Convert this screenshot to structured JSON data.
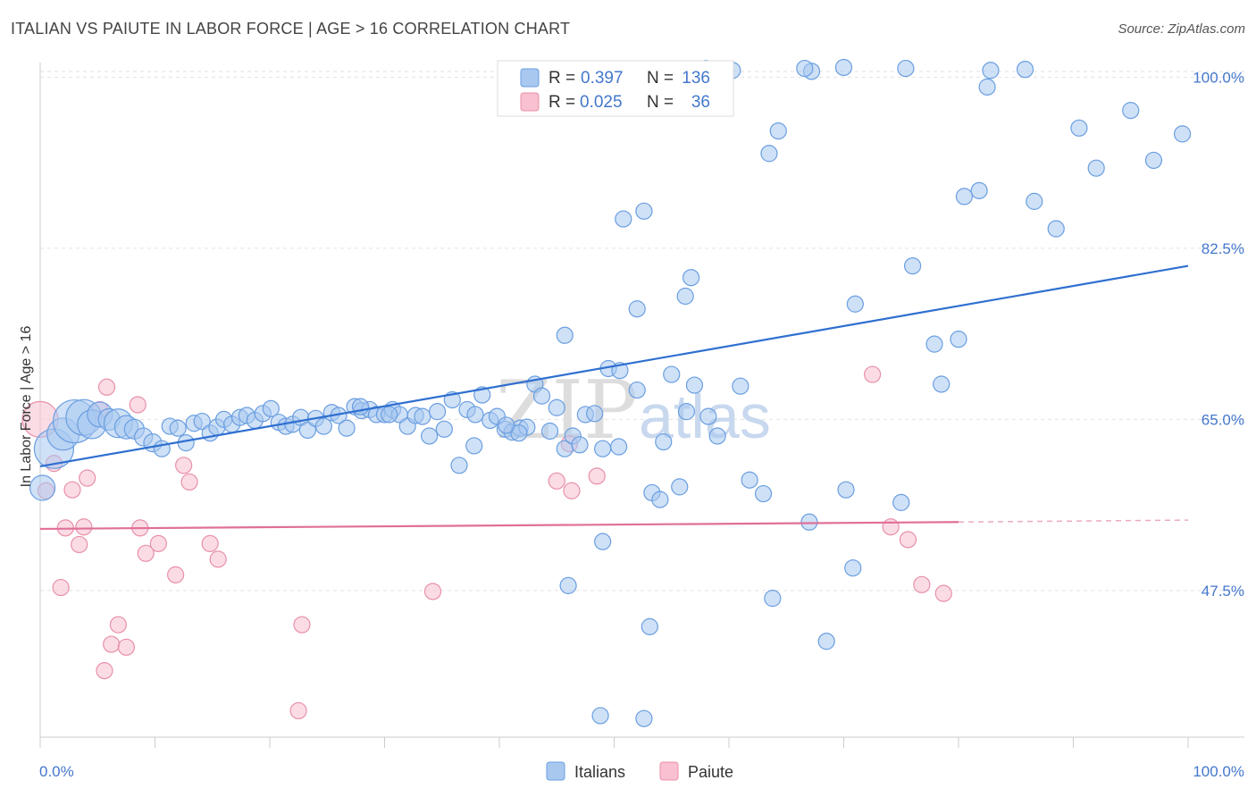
{
  "header": {
    "title": "ITALIAN VS PAIUTE IN LABOR FORCE | AGE > 16 CORRELATION CHART",
    "source": "Source: ZipAtlas.com"
  },
  "colors": {
    "italians_fill": "#a8c8f0",
    "italians_stroke": "#6a9ee0",
    "italians_line": "#2f6fd0",
    "paiute_fill": "#f8c0d0",
    "paiute_stroke": "#e890a8",
    "paiute_line": "#e06f98",
    "tick_text": "#4477cc"
  },
  "legend": {
    "rows": [
      {
        "r_label": "R =",
        "r_value": "0.397",
        "n_label": "N =",
        "n_value": "136"
      },
      {
        "r_label": "R =",
        "r_value": "0.025",
        "n_label": "N =",
        "n_value": "36"
      }
    ]
  },
  "bottom_legend": {
    "items": [
      "Italians",
      "Paiute"
    ]
  },
  "watermark": {
    "zip": "ZIP",
    "atlas": "atlas"
  },
  "chart_data": {
    "type": "scatter",
    "title": "ITALIAN VS PAIUTE IN LABOR FORCE | AGE > 16 CORRELATION CHART",
    "ylabel": "In Labor Force | Age > 16",
    "xlabel": "",
    "xlim": [
      0,
      100
    ],
    "ylim": [
      32.5,
      101.5
    ],
    "x_tick_labels": [
      "0.0%",
      "100.0%"
    ],
    "y_ticks": [
      47.5,
      65.0,
      82.5,
      100.0
    ],
    "y_tick_labels": [
      "47.5%",
      "65.0%",
      "82.5%",
      "100.0%"
    ],
    "grid": "horizontal dashed",
    "legend_position": "top-center",
    "series": [
      {
        "name": "Italians",
        "R": 0.397,
        "N": 136,
        "trend": {
          "x": [
            0,
            100
          ],
          "y": [
            60.2,
            80.7
          ]
        },
        "points": [
          [
            0.2,
            58.0,
            14
          ],
          [
            1.2,
            62.0,
            22
          ],
          [
            2.0,
            63.5,
            18
          ],
          [
            3.0,
            64.8,
            24
          ],
          [
            3.8,
            65.2,
            20
          ],
          [
            4.5,
            64.5,
            16
          ],
          [
            5.2,
            65.5,
            14
          ],
          [
            6.0,
            65.0,
            12
          ],
          [
            6.8,
            64.6,
            16
          ],
          [
            7.5,
            64.2,
            13
          ],
          [
            8.2,
            64.0,
            11
          ],
          [
            9.0,
            63.2,
            10
          ],
          [
            9.8,
            62.6,
            10
          ],
          [
            10.6,
            62.0,
            9
          ],
          [
            11.3,
            64.3,
            9
          ],
          [
            12.0,
            64.1,
            9
          ],
          [
            12.7,
            62.6,
            9
          ],
          [
            13.4,
            64.6,
            9
          ],
          [
            14.1,
            64.8,
            9
          ],
          [
            14.8,
            63.6,
            9
          ],
          [
            15.4,
            64.2,
            9
          ],
          [
            16.0,
            65.0,
            9
          ],
          [
            16.7,
            64.5,
            9
          ],
          [
            17.4,
            65.2,
            9
          ],
          [
            18.0,
            65.4,
            9
          ],
          [
            18.7,
            64.9,
            9
          ],
          [
            19.4,
            65.6,
            9
          ],
          [
            20.1,
            66.1,
            9
          ],
          [
            20.8,
            64.7,
            9
          ],
          [
            21.4,
            64.3,
            9
          ],
          [
            22.0,
            64.5,
            9
          ],
          [
            22.7,
            65.2,
            9
          ],
          [
            23.3,
            63.9,
            9
          ],
          [
            24.0,
            65.1,
            9
          ],
          [
            24.7,
            64.3,
            9
          ],
          [
            25.4,
            65.7,
            9
          ],
          [
            26.0,
            65.4,
            9
          ],
          [
            26.7,
            64.1,
            9
          ],
          [
            27.4,
            66.3,
            9
          ],
          [
            28.0,
            65.9,
            9
          ],
          [
            28.7,
            66.0,
            9
          ],
          [
            29.3,
            65.5,
            9
          ],
          [
            30.0,
            65.5,
            9
          ],
          [
            30.7,
            66.0,
            9
          ],
          [
            31.3,
            65.5,
            9
          ],
          [
            32.0,
            64.3,
            9
          ],
          [
            32.7,
            65.4,
            9
          ],
          [
            33.3,
            65.3,
            9
          ],
          [
            33.9,
            63.3,
            9
          ],
          [
            34.6,
            65.8,
            9
          ],
          [
            35.2,
            64.0,
            9
          ],
          [
            35.9,
            67.0,
            9
          ],
          [
            36.5,
            60.3,
            9
          ],
          [
            37.2,
            66.0,
            9
          ],
          [
            37.8,
            62.3,
            9
          ],
          [
            38.5,
            67.5,
            9
          ],
          [
            39.2,
            64.9,
            9
          ],
          [
            39.8,
            65.3,
            9
          ],
          [
            40.5,
            64.0,
            9
          ],
          [
            41.1,
            63.7,
            9
          ],
          [
            41.8,
            64.1,
            9
          ],
          [
            42.4,
            64.2,
            9
          ],
          [
            43.1,
            68.6,
            9
          ],
          [
            43.7,
            67.4,
            9
          ],
          [
            44.4,
            63.8,
            9
          ],
          [
            45.0,
            66.2,
            9
          ],
          [
            45.7,
            62.0,
            9
          ],
          [
            46.4,
            63.3,
            9
          ],
          [
            47.0,
            62.4,
            9
          ],
          [
            41.7,
            63.6,
            9
          ],
          [
            40.6,
            64.4,
            9
          ],
          [
            37.9,
            65.5,
            9
          ],
          [
            30.4,
            65.5,
            9
          ],
          [
            27.9,
            66.3,
            9
          ],
          [
            47.5,
            65.5,
            9
          ],
          [
            48.3,
            65.6,
            9
          ],
          [
            49.0,
            62.0,
            9
          ],
          [
            49.5,
            70.2,
            9
          ],
          [
            50.5,
            70.0,
            9
          ],
          [
            52.0,
            68.0,
            9
          ],
          [
            53.3,
            57.5,
            9
          ],
          [
            54.0,
            56.8,
            9
          ],
          [
            55.0,
            69.6,
            9
          ],
          [
            56.3,
            65.8,
            9
          ],
          [
            57.0,
            68.5,
            9
          ],
          [
            58.2,
            65.3,
            9
          ],
          [
            59.0,
            63.3,
            9
          ],
          [
            55.7,
            58.1,
            9
          ],
          [
            61.0,
            68.4,
            9
          ],
          [
            63.0,
            57.4,
            9
          ],
          [
            52.0,
            76.3,
            9
          ],
          [
            50.4,
            62.2,
            9
          ],
          [
            46.0,
            48.0,
            9
          ],
          [
            49.0,
            52.5,
            9
          ],
          [
            54.3,
            62.7,
            9
          ],
          [
            63.8,
            46.7,
            9
          ],
          [
            68.5,
            42.3,
            9
          ],
          [
            45.7,
            73.6,
            9
          ],
          [
            48.8,
            34.7,
            9
          ],
          [
            52.6,
            34.4,
            9
          ],
          [
            50.8,
            85.5,
            9
          ],
          [
            52.6,
            86.3,
            9
          ],
          [
            53.1,
            43.8,
            9
          ],
          [
            56.7,
            79.5,
            9
          ],
          [
            56.2,
            77.6,
            9
          ],
          [
            71.0,
            76.8,
            9
          ],
          [
            63.5,
            92.2,
            9
          ],
          [
            64.3,
            94.5,
            9
          ],
          [
            70.2,
            57.8,
            9
          ],
          [
            67.0,
            54.5,
            9
          ],
          [
            70.8,
            49.8,
            9
          ],
          [
            76.0,
            80.7,
            9
          ],
          [
            77.9,
            72.7,
            9
          ],
          [
            80.0,
            73.2,
            9
          ],
          [
            75.0,
            56.5,
            9
          ],
          [
            78.5,
            68.6,
            9
          ],
          [
            82.8,
            100.7,
            9
          ],
          [
            85.8,
            100.8,
            9
          ],
          [
            86.6,
            87.3,
            9
          ],
          [
            81.8,
            88.4,
            9
          ],
          [
            88.5,
            84.5,
            9
          ],
          [
            80.5,
            87.8,
            9
          ],
          [
            90.5,
            94.8,
            9
          ],
          [
            92.0,
            90.7,
            9
          ],
          [
            95.0,
            96.6,
            9
          ],
          [
            97.0,
            91.5,
            9
          ],
          [
            99.5,
            94.2,
            9
          ],
          [
            61.8,
            58.8,
            9
          ],
          [
            60.3,
            100.7,
            9
          ],
          [
            58.4,
            100.5,
            9
          ],
          [
            67.2,
            100.6,
            9
          ],
          [
            82.5,
            99.0,
            9
          ],
          [
            75.4,
            100.9,
            9
          ],
          [
            66.6,
            100.9,
            9
          ],
          [
            58.0,
            100.9,
            9
          ],
          [
            70.0,
            101.0,
            9
          ]
        ]
      },
      {
        "name": "Paiute",
        "R": 0.025,
        "N": 36,
        "trend": {
          "x": [
            0,
            80
          ],
          "y": [
            53.8,
            54.5
          ]
        },
        "trend_dashed": {
          "x": [
            80,
            100
          ],
          "y": [
            54.5,
            54.7
          ]
        },
        "points": [
          [
            0.0,
            65.0,
            20
          ],
          [
            1.2,
            60.5,
            9
          ],
          [
            1.8,
            47.8,
            9
          ],
          [
            2.2,
            53.9,
            9
          ],
          [
            2.8,
            57.8,
            9
          ],
          [
            3.4,
            52.2,
            9
          ],
          [
            3.8,
            54.0,
            9
          ],
          [
            4.1,
            59.0,
            9
          ],
          [
            5.2,
            66.0,
            9
          ],
          [
            5.6,
            39.3,
            9
          ],
          [
            5.8,
            68.3,
            9
          ],
          [
            6.2,
            42.0,
            9
          ],
          [
            6.8,
            44.0,
            9
          ],
          [
            7.5,
            41.7,
            9
          ],
          [
            8.5,
            66.5,
            9
          ],
          [
            8.7,
            53.9,
            9
          ],
          [
            9.2,
            51.3,
            9
          ],
          [
            10.3,
            52.3,
            9
          ],
          [
            11.8,
            49.1,
            9
          ],
          [
            12.5,
            60.3,
            9
          ],
          [
            13.0,
            58.6,
            9
          ],
          [
            14.8,
            52.3,
            9
          ],
          [
            15.5,
            50.7,
            9
          ],
          [
            22.8,
            44.0,
            9
          ],
          [
            22.5,
            35.2,
            9
          ],
          [
            34.2,
            47.4,
            9
          ],
          [
            46.1,
            62.5,
            9
          ],
          [
            45.0,
            58.7,
            9
          ],
          [
            46.3,
            57.7,
            9
          ],
          [
            48.5,
            59.2,
            9
          ],
          [
            72.5,
            69.6,
            9
          ],
          [
            74.1,
            54.0,
            9
          ],
          [
            75.6,
            52.7,
            9
          ],
          [
            76.8,
            48.1,
            9
          ],
          [
            78.7,
            47.2,
            9
          ],
          [
            0.5,
            57.7,
            9
          ]
        ]
      }
    ]
  }
}
